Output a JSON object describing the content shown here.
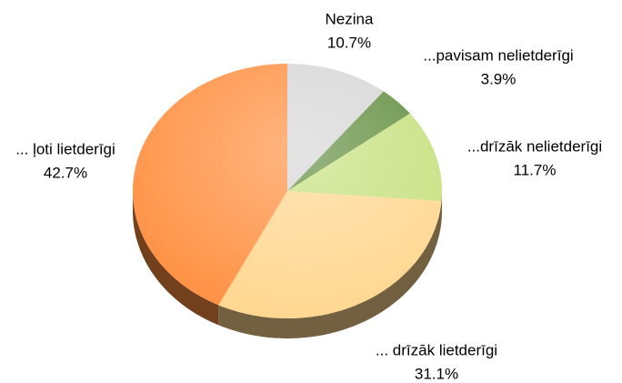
{
  "chart_data": {
    "type": "pie",
    "categories": [
      "Nezina",
      "...pavisam nelietderīgi",
      "...drīzāk nelietderīgi",
      "... drīzāk lietderīgi",
      "... ļoti lietderīgi"
    ],
    "values": [
      10.7,
      3.9,
      11.7,
      31.1,
      42.7
    ],
    "value_labels": [
      "10.7%",
      "3.9%",
      "11.7%",
      "31.1%",
      "42.7%"
    ],
    "colors": [
      "#d6d6d6",
      "#5f8c3c",
      "#c6e07c",
      "#ffd68e",
      "#ff8f40"
    ]
  }
}
